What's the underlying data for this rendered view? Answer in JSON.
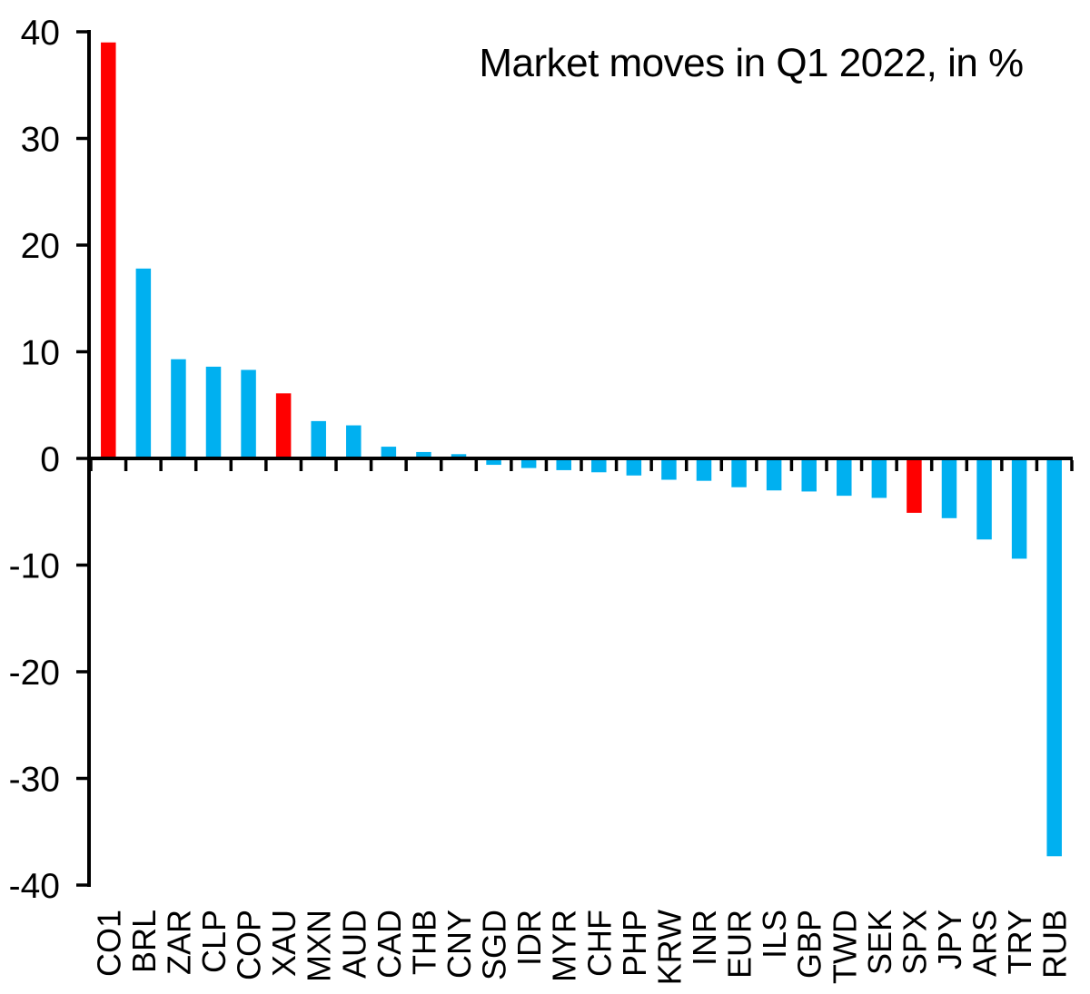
{
  "chart_data": {
    "type": "bar",
    "title": "Market moves in Q1 2022, in %",
    "xlabel": "",
    "ylabel": "",
    "categories": [
      "CO1",
      "BRL",
      "ZAR",
      "CLP",
      "COP",
      "XAU",
      "MXN",
      "AUD",
      "CAD",
      "THB",
      "CNY",
      "SGD",
      "IDR",
      "MYR",
      "CHF",
      "PHP",
      "KRW",
      "INR",
      "EUR",
      "ILS",
      "GBP",
      "TWD",
      "SEK",
      "SPX",
      "JPY",
      "ARS",
      "TRY",
      "RUB"
    ],
    "values": [
      39.0,
      17.8,
      9.3,
      8.6,
      8.3,
      6.1,
      3.5,
      3.1,
      1.1,
      0.6,
      0.4,
      -0.6,
      -0.9,
      -1.1,
      -1.3,
      -1.6,
      -2.0,
      -2.1,
      -2.7,
      -3.0,
      -3.1,
      -3.5,
      -3.7,
      -5.1,
      -5.6,
      -7.6,
      -9.4,
      -37.3
    ],
    "highlighted": [
      "CO1",
      "XAU",
      "SPX"
    ],
    "highlight_color": "#FF0000",
    "default_color": "#00B0F0",
    "axis_color": "#000000",
    "background_color": "#FFFFFF",
    "ylim": [
      -40,
      40
    ],
    "yticks": [
      40,
      30,
      20,
      10,
      0,
      -10,
      -20,
      -30,
      -40
    ],
    "grid": false,
    "legend": "none",
    "x_labels_rotated_degrees": -90
  }
}
